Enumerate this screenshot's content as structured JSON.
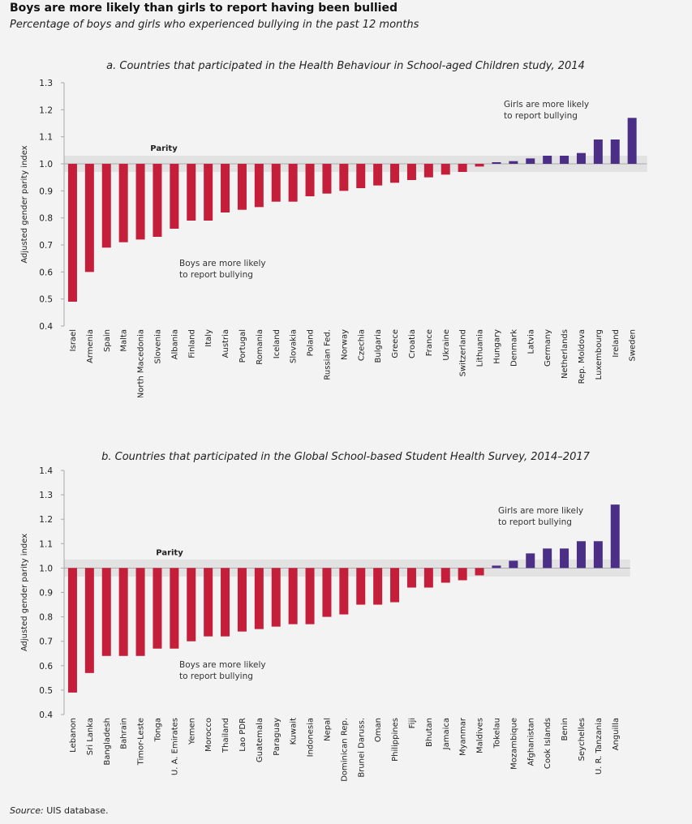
{
  "title": "Boys are more likely than girls to report having been bullied",
  "subtitle": "Percentage of boys and girls who experienced bullying in the past 12 months",
  "source_label": "Source:",
  "source_text": " UIS database.",
  "colors": {
    "boys": "#c41e3a",
    "girls": "#4b2f86",
    "parity_band": "#e2e2e2",
    "axis": "#aaaaaa"
  },
  "chart_data": [
    {
      "type": "bar",
      "title": "a. Countries that participated in the Health Behaviour in School-aged Children study, 2014",
      "ylabel": "Adjusted gender parity index",
      "ylim": [
        0.4,
        1.3
      ],
      "yticks": [
        "0.4",
        "0.5",
        "0.6",
        "0.7",
        "0.8",
        "0.9",
        "1.0",
        "1.1",
        "1.2",
        "1.3"
      ],
      "parity_label": "Parity",
      "annotation_girls": [
        "Girls are more likely",
        "to report bullying"
      ],
      "annotation_boys": [
        "Boys are more likely",
        "to report bullying"
      ],
      "categories": [
        "Israel",
        "Armenia",
        "Spain",
        "Malta",
        "North Macedonia",
        "Slovenia",
        "Albania",
        "Finland",
        "Italy",
        "Austria",
        "Portugal",
        "Romania",
        "Iceland",
        "Slovakia",
        "Poland",
        "Russian Fed.",
        "Norway",
        "Czechia",
        "Bulgaria",
        "Greece",
        "Croatia",
        "France",
        "Ukraine",
        "Switzerland",
        "Lithuania",
        "Hungary",
        "Denmark",
        "Latvia",
        "Germany",
        "Netherlands",
        "Rep. Moldova",
        "Luxembourg",
        "Ireland",
        "Sweden"
      ],
      "values": [
        0.49,
        0.6,
        0.69,
        0.71,
        0.72,
        0.73,
        0.76,
        0.79,
        0.79,
        0.82,
        0.83,
        0.84,
        0.86,
        0.86,
        0.88,
        0.89,
        0.9,
        0.91,
        0.92,
        0.93,
        0.94,
        0.95,
        0.96,
        0.97,
        0.99,
        1.0,
        1.01,
        1.02,
        1.03,
        1.03,
        1.04,
        1.09,
        1.09,
        1.17
      ]
    },
    {
      "type": "bar",
      "title": "b. Countries that participated in the Global School-based Student Health Survey, 2014–2017",
      "ylabel": "Adjusted gender parity index",
      "ylim": [
        0.4,
        1.4
      ],
      "yticks": [
        "0.4",
        "0.5",
        "0.6",
        "0.7",
        "0.8",
        "0.9",
        "1.0",
        "1.1",
        "1.2",
        "1.3",
        "1.4"
      ],
      "parity_label": "Parity",
      "annotation_girls": [
        "Girls are more likely",
        "to report bullying"
      ],
      "annotation_boys": [
        "Boys are more likely",
        "to report bullying"
      ],
      "categories": [
        "Lebanon",
        "Sri Lanka",
        "Bangladesh",
        "Bahrain",
        "Timor-Leste",
        "Tonga",
        "U. A. Emirates",
        "Yemen",
        "Morocco",
        "Thailand",
        "Lao PDR",
        "Guatemala",
        "Paraguay",
        "Kuwait",
        "Indonesia",
        "Nepal",
        "Dominican Rep.",
        "Brunei Daruss.",
        "Oman",
        "Philippines",
        "Fiji",
        "Bhutan",
        "Jamaica",
        "Myanmar",
        "Maldives",
        "Tokelau",
        "Mozambique",
        "Afghanistan",
        "Cook Islands",
        "Benin",
        "Seychelles",
        "U. R. Tanzania",
        "Anguilla"
      ],
      "values": [
        0.49,
        0.57,
        0.64,
        0.64,
        0.64,
        0.67,
        0.67,
        0.7,
        0.72,
        0.72,
        0.74,
        0.75,
        0.76,
        0.77,
        0.77,
        0.8,
        0.81,
        0.85,
        0.85,
        0.86,
        0.92,
        0.92,
        0.94,
        0.95,
        0.97,
        1.01,
        1.03,
        1.06,
        1.08,
        1.08,
        1.11,
        1.11,
        1.26
      ]
    }
  ]
}
